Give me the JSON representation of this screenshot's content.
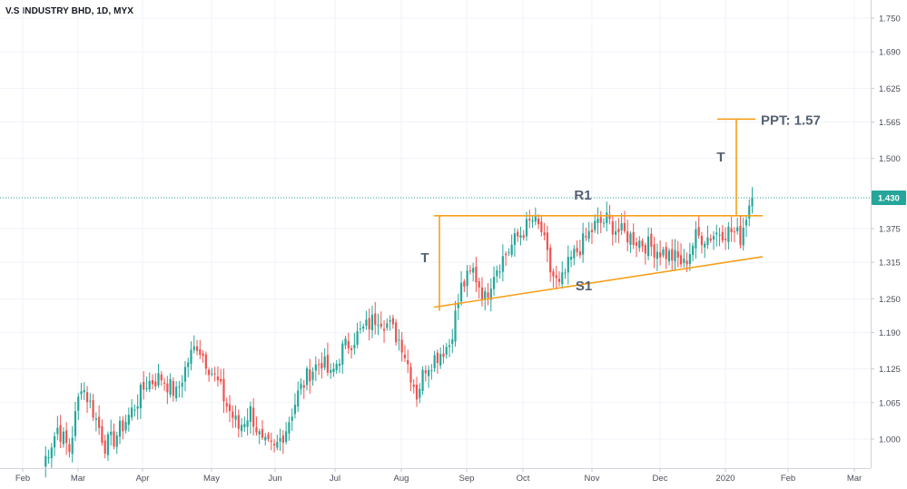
{
  "header": {
    "title": "V.S INDUSTRY BHD, 1D, MYX"
  },
  "chart_data": {
    "type": "candlestick",
    "symbol": "V.S INDUSTRY BHD",
    "interval": "1D",
    "exchange": "MYX",
    "y_ticks": [
      "1.750",
      "1.690",
      "1.625",
      "1.565",
      "1.500",
      "1.430",
      "1.375",
      "1.315",
      "1.250",
      "1.190",
      "1.125",
      "1.065",
      "1.000"
    ],
    "x_ticks": [
      "Feb",
      "Mar",
      "Apr",
      "May",
      "Jun",
      "Jul",
      "Aug",
      "Sep",
      "Oct",
      "Nov",
      "Dec",
      "2020",
      "Feb",
      "Mar"
    ],
    "ylim": [
      0.935,
      1.78
    ],
    "last_price": {
      "value": 1.43,
      "label": "1.430"
    },
    "colors": {
      "up": "#26a69a",
      "down": "#ef5350",
      "trendline": "#f7a01c",
      "price_line": "#26a69a",
      "annotation": "#566173"
    },
    "waypoints": [
      {
        "d": 0,
        "p": 0.955
      },
      {
        "d": 5,
        "p": 1.02
      },
      {
        "d": 9,
        "p": 0.98
      },
      {
        "d": 13,
        "p": 1.1
      },
      {
        "d": 17,
        "p": 1.05
      },
      {
        "d": 21,
        "p": 0.99
      },
      {
        "d": 24,
        "p": 1.0
      },
      {
        "d": 30,
        "p": 1.05
      },
      {
        "d": 35,
        "p": 1.1
      },
      {
        "d": 40,
        "p": 1.11
      },
      {
        "d": 45,
        "p": 1.08
      },
      {
        "d": 49,
        "p": 1.14
      },
      {
        "d": 52,
        "p": 1.17
      },
      {
        "d": 55,
        "p": 1.14
      },
      {
        "d": 59,
        "p": 1.1
      },
      {
        "d": 62,
        "p": 1.06
      },
      {
        "d": 66,
        "p": 1.02
      },
      {
        "d": 70,
        "p": 1.05
      },
      {
        "d": 74,
        "p": 0.99
      },
      {
        "d": 78,
        "p": 0.98
      },
      {
        "d": 82,
        "p": 1.02
      },
      {
        "d": 86,
        "p": 1.08
      },
      {
        "d": 90,
        "p": 1.12
      },
      {
        "d": 94,
        "p": 1.14
      },
      {
        "d": 97,
        "p": 1.11
      },
      {
        "d": 101,
        "p": 1.16
      },
      {
        "d": 105,
        "p": 1.18
      },
      {
        "d": 109,
        "p": 1.2
      },
      {
        "d": 113,
        "p": 1.22
      },
      {
        "d": 117,
        "p": 1.2
      },
      {
        "d": 121,
        "p": 1.17
      },
      {
        "d": 126,
        "p": 1.08
      },
      {
        "d": 129,
        "p": 1.13
      },
      {
        "d": 133,
        "p": 1.15
      },
      {
        "d": 137,
        "p": 1.17
      },
      {
        "d": 139,
        "p": 1.22
      },
      {
        "d": 141,
        "p": 1.27
      },
      {
        "d": 145,
        "p": 1.3
      },
      {
        "d": 149,
        "p": 1.25
      },
      {
        "d": 152,
        "p": 1.3
      },
      {
        "d": 156,
        "p": 1.33
      },
      {
        "d": 160,
        "p": 1.36
      },
      {
        "d": 165,
        "p": 1.39
      },
      {
        "d": 168,
        "p": 1.37
      },
      {
        "d": 171,
        "p": 1.3
      },
      {
        "d": 174,
        "p": 1.27
      },
      {
        "d": 178,
        "p": 1.32
      },
      {
        "d": 182,
        "p": 1.35
      },
      {
        "d": 186,
        "p": 1.38
      },
      {
        "d": 190,
        "p": 1.39
      },
      {
        "d": 194,
        "p": 1.37
      },
      {
        "d": 198,
        "p": 1.36
      },
      {
        "d": 202,
        "p": 1.35
      },
      {
        "d": 206,
        "p": 1.34
      },
      {
        "d": 210,
        "p": 1.33
      },
      {
        "d": 214,
        "p": 1.32
      },
      {
        "d": 216,
        "p": 1.31
      },
      {
        "d": 220,
        "p": 1.36
      },
      {
        "d": 224,
        "p": 1.36
      },
      {
        "d": 228,
        "p": 1.37
      },
      {
        "d": 232,
        "p": 1.37
      },
      {
        "d": 235,
        "p": 1.36
      },
      {
        "d": 237,
        "p": 1.4
      },
      {
        "d": 239,
        "p": 1.44
      }
    ],
    "annotations": {
      "resistance": {
        "label": "R1",
        "value": 1.398,
        "x_start": "2019-08-19",
        "x_end": "2020-01-16"
      },
      "support": {
        "label": "S1",
        "value_start": 1.235,
        "value_end": 1.325,
        "x_start": "2019-08-19",
        "x_end": "2020-01-16"
      },
      "triangle_height_label": "T",
      "target_label": "T",
      "target": {
        "label": "PPT: 1.57",
        "value": 1.57
      }
    }
  }
}
